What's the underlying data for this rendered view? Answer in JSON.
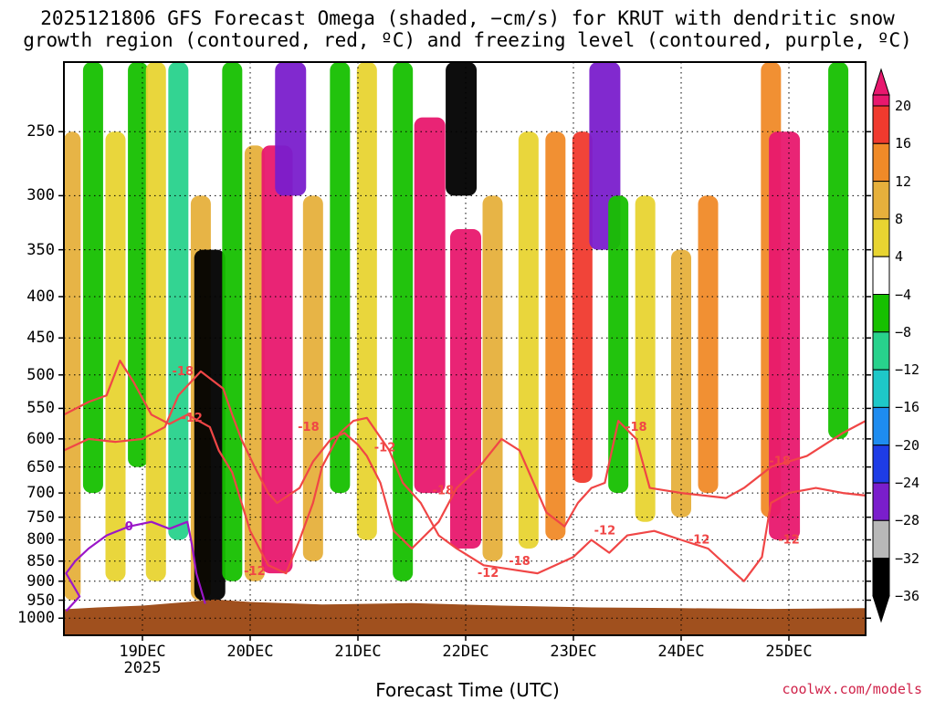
{
  "title_line1": "2025121806 GFS Forecast Omega (shaded, −cm/s) for KRUT with dendritic snow",
  "title_line2": "growth region (contoured, red, ºC) and freezing level (contoured, purple, ºC)",
  "xlabel": "Forecast Time (UTC)",
  "credit": "coolwx.com/models",
  "chart_data": {
    "type": "heatmap",
    "title": "2025121806 GFS Forecast Omega (shaded, −cm/s) for KRUT with dendritic snow growth region (contoured, red, ºC) and freezing level (contoured, purple, ºC)",
    "xlabel": "Forecast Time (UTC)",
    "ylabel": "",
    "y_scale": "pressure (log), inverted",
    "y_ticks": [
      250,
      300,
      350,
      400,
      450,
      500,
      550,
      600,
      650,
      700,
      750,
      800,
      850,
      900,
      950,
      1000
    ],
    "x_ticks": [
      {
        "label": "19DEC",
        "sublabel": "2025",
        "hour": 0
      },
      {
        "label": "20DEC",
        "hour": 24
      },
      {
        "label": "21DEC",
        "hour": 48
      },
      {
        "label": "22DEC",
        "hour": 72
      },
      {
        "label": "23DEC",
        "hour": 96
      },
      {
        "label": "24DEC",
        "hour": 120
      },
      {
        "label": "25DEC",
        "hour": 144
      }
    ],
    "x_range_hours": [
      -18,
      162
    ],
    "grid": true,
    "colorbar": {
      "labels": [
        "20",
        "16",
        "12",
        "8",
        "4",
        "−4",
        "−8",
        "−12",
        "−16",
        "−20",
        "−24",
        "−28",
        "−32",
        "−36"
      ],
      "colors": [
        "#e8186e",
        "#f03a2e",
        "#f08a28",
        "#e6b03c",
        "#e8d431",
        "#ffffff",
        "#16c000",
        "#28d28c",
        "#1ec8c8",
        "#1e8cf0",
        "#1e3ce6",
        "#7a1ecc",
        "#b8b8b8",
        "#000000"
      ]
    },
    "shaded_columns": [
      {
        "hour": -16,
        "top": 250,
        "bottom": 950,
        "value": 8
      },
      {
        "hour": -11,
        "top": 200,
        "bottom": 700,
        "value": -8
      },
      {
        "hour": -6,
        "top": 250,
        "bottom": 900,
        "value": 4
      },
      {
        "hour": -1,
        "top": 200,
        "bottom": 650,
        "value": -8
      },
      {
        "hour": 3,
        "top": 200,
        "bottom": 900,
        "value": 4
      },
      {
        "hour": 8,
        "top": 200,
        "bottom": 800,
        "value": -12
      },
      {
        "hour": 13,
        "top": 300,
        "bottom": 950,
        "value": 8
      },
      {
        "hour": 15,
        "top": 350,
        "bottom": 950,
        "value": -36
      },
      {
        "hour": 20,
        "top": 200,
        "bottom": 900,
        "value": -8
      },
      {
        "hour": 25,
        "top": 260,
        "bottom": 900,
        "value": 8
      },
      {
        "hour": 30,
        "top": 260,
        "bottom": 880,
        "value": 20
      },
      {
        "hour": 33,
        "top": 200,
        "bottom": 300,
        "value": -28
      },
      {
        "hour": 38,
        "top": 300,
        "bottom": 850,
        "value": 8
      },
      {
        "hour": 44,
        "top": 200,
        "bottom": 700,
        "value": -8
      },
      {
        "hour": 50,
        "top": 200,
        "bottom": 800,
        "value": 4
      },
      {
        "hour": 58,
        "top": 200,
        "bottom": 900,
        "value": -8
      },
      {
        "hour": 64,
        "top": 240,
        "bottom": 700,
        "value": 20
      },
      {
        "hour": 71,
        "top": 200,
        "bottom": 300,
        "value": -36
      },
      {
        "hour": 72,
        "top": 330,
        "bottom": 820,
        "value": 20
      },
      {
        "hour": 78,
        "top": 300,
        "bottom": 850,
        "value": 8
      },
      {
        "hour": 86,
        "top": 250,
        "bottom": 820,
        "value": 4
      },
      {
        "hour": 92,
        "top": 250,
        "bottom": 800,
        "value": 12
      },
      {
        "hour": 98,
        "top": 250,
        "bottom": 680,
        "value": 16
      },
      {
        "hour": 103,
        "top": 200,
        "bottom": 350,
        "value": -28
      },
      {
        "hour": 106,
        "top": 300,
        "bottom": 700,
        "value": -8
      },
      {
        "hour": 112,
        "top": 300,
        "bottom": 760,
        "value": 4
      },
      {
        "hour": 120,
        "top": 350,
        "bottom": 750,
        "value": 8
      },
      {
        "hour": 126,
        "top": 300,
        "bottom": 700,
        "value": 12
      },
      {
        "hour": 131,
        "top": 200,
        "bottom": 800,
        "value": -4
      },
      {
        "hour": 140,
        "top": 200,
        "bottom": 750,
        "value": 12
      },
      {
        "hour": 143,
        "top": 250,
        "bottom": 800,
        "value": 20
      },
      {
        "hour": 155,
        "top": 200,
        "bottom": 600,
        "value": -8
      }
    ],
    "contours": [
      {
        "label": "-18",
        "color": "#f04646",
        "points": [
          [
            -18,
            620
          ],
          [
            -12,
            600
          ],
          [
            -6,
            605
          ],
          [
            0,
            600
          ],
          [
            5,
            580
          ],
          [
            8,
            530
          ],
          [
            13,
            495
          ],
          [
            18,
            520
          ],
          [
            20,
            560
          ],
          [
            22,
            600
          ],
          [
            25,
            650
          ],
          [
            28,
            700
          ],
          [
            30,
            720
          ],
          [
            35,
            690
          ],
          [
            38,
            640
          ],
          [
            42,
            600
          ],
          [
            45,
            590
          ],
          [
            48,
            610
          ],
          [
            50,
            630
          ],
          [
            53,
            680
          ],
          [
            56,
            780
          ],
          [
            60,
            820
          ],
          [
            66,
            760
          ],
          [
            70,
            690
          ],
          [
            75,
            650
          ],
          [
            80,
            600
          ],
          [
            84,
            620
          ],
          [
            90,
            740
          ],
          [
            94,
            770
          ],
          [
            97,
            720
          ],
          [
            100,
            690
          ],
          [
            103,
            680
          ],
          [
            106,
            570
          ],
          [
            110,
            600
          ],
          [
            113,
            690
          ],
          [
            120,
            700
          ],
          [
            130,
            710
          ],
          [
            134,
            690
          ],
          [
            140,
            650
          ],
          [
            148,
            630
          ],
          [
            156,
            590
          ],
          [
            162,
            570
          ]
        ]
      },
      {
        "label": "-12",
        "color": "#f04646",
        "points": [
          [
            -18,
            560
          ],
          [
            -12,
            540
          ],
          [
            -8,
            530
          ],
          [
            -5,
            480
          ],
          [
            -2,
            510
          ],
          [
            2,
            560
          ],
          [
            6,
            575
          ],
          [
            10,
            560
          ],
          [
            15,
            580
          ],
          [
            17,
            620
          ],
          [
            20,
            660
          ],
          [
            24,
            780
          ],
          [
            28,
            860
          ],
          [
            32,
            880
          ],
          [
            35,
            800
          ],
          [
            38,
            720
          ],
          [
            40,
            650
          ],
          [
            44,
            590
          ],
          [
            47,
            570
          ],
          [
            50,
            565
          ],
          [
            55,
            620
          ],
          [
            58,
            680
          ],
          [
            62,
            720
          ],
          [
            66,
            790
          ],
          [
            70,
            820
          ],
          [
            76,
            860
          ],
          [
            82,
            870
          ],
          [
            88,
            880
          ],
          [
            92,
            860
          ],
          [
            96,
            840
          ],
          [
            100,
            800
          ],
          [
            104,
            830
          ],
          [
            108,
            790
          ],
          [
            114,
            780
          ],
          [
            120,
            800
          ],
          [
            126,
            820
          ],
          [
            132,
            880
          ],
          [
            134,
            900
          ],
          [
            138,
            840
          ],
          [
            140,
            720
          ],
          [
            144,
            700
          ],
          [
            150,
            690
          ],
          [
            156,
            700
          ],
          [
            162,
            705
          ]
        ]
      },
      {
        "label": "0",
        "color": "#9a16c8",
        "points": [
          [
            -17,
            980
          ],
          [
            -14,
            940
          ],
          [
            -17,
            880
          ],
          [
            -15,
            850
          ],
          [
            -12,
            820
          ],
          [
            -8,
            790
          ],
          [
            -3,
            770
          ],
          [
            2,
            760
          ],
          [
            6,
            775
          ],
          [
            10,
            760
          ],
          [
            11,
            810
          ],
          [
            12,
            880
          ],
          [
            14,
            960
          ]
        ]
      }
    ],
    "contour_labels": [
      {
        "text": "-18",
        "hour": 9,
        "p": 495
      },
      {
        "text": "-12",
        "hour": 11,
        "p": 565
      },
      {
        "text": "-18",
        "hour": 37,
        "p": 580
      },
      {
        "text": "-12",
        "hour": 54,
        "p": 615
      },
      {
        "text": "-18",
        "hour": 67,
        "p": 695
      },
      {
        "text": "-12",
        "hour": 77,
        "p": 880
      },
      {
        "text": "-18",
        "hour": 84,
        "p": 850
      },
      {
        "text": "-12",
        "hour": 103,
        "p": 780
      },
      {
        "text": "-18",
        "hour": 110,
        "p": 580
      },
      {
        "text": "-12",
        "hour": 124,
        "p": 800
      },
      {
        "text": "-18",
        "hour": 142,
        "p": 640
      },
      {
        "text": "-12",
        "hour": 144,
        "p": 800
      },
      {
        "text": "-12",
        "hour": 25,
        "p": 875
      },
      {
        "text": "0",
        "hour": -3,
        "p": 770
      }
    ],
    "terrain": {
      "color": "#a0501e",
      "surface": [
        [
          -18,
          975
        ],
        [
          -10,
          970
        ],
        [
          0,
          965
        ],
        [
          10,
          955
        ],
        [
          16,
          948
        ],
        [
          24,
          955
        ],
        [
          40,
          962
        ],
        [
          60,
          958
        ],
        [
          80,
          965
        ],
        [
          100,
          970
        ],
        [
          120,
          972
        ],
        [
          140,
          974
        ],
        [
          162,
          972
        ]
      ]
    }
  }
}
